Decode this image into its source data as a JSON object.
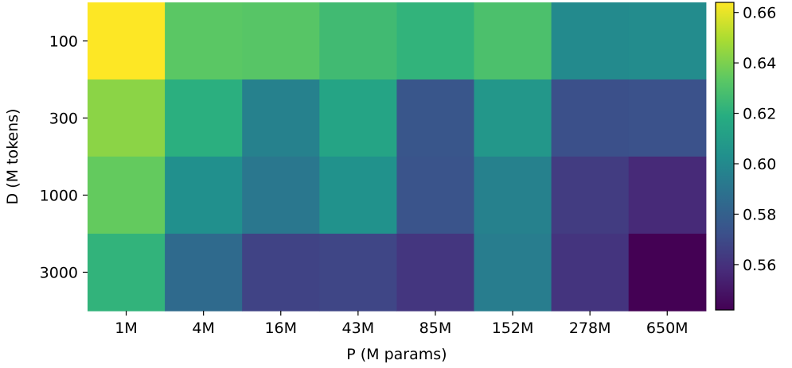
{
  "chart_data": {
    "type": "heatmap",
    "xlabel": "P (M params)",
    "ylabel": "D (M tokens)",
    "x_categories": [
      "1M",
      "4M",
      "16M",
      "43M",
      "85M",
      "152M",
      "278M",
      "650M"
    ],
    "y_categories": [
      "100",
      "300",
      "1000",
      "3000"
    ],
    "values": [
      [
        0.664,
        0.633,
        0.632,
        0.626,
        0.622,
        0.629,
        0.6,
        0.601
      ],
      [
        0.643,
        0.62,
        0.596,
        0.614,
        0.575,
        0.607,
        0.572,
        0.573
      ],
      [
        0.635,
        0.603,
        0.591,
        0.604,
        0.574,
        0.596,
        0.564,
        0.557
      ],
      [
        0.622,
        0.585,
        0.567,
        0.568,
        0.562,
        0.594,
        0.561,
        0.542
      ]
    ],
    "colormap": "viridis",
    "colorbar": {
      "vmin": 0.542,
      "vmax": 0.664,
      "ticks": [
        0.56,
        0.58,
        0.6,
        0.62,
        0.64,
        0.66
      ],
      "tick_labels": [
        "0.56",
        "0.58",
        "0.60",
        "0.62",
        "0.64",
        "0.66"
      ]
    }
  }
}
